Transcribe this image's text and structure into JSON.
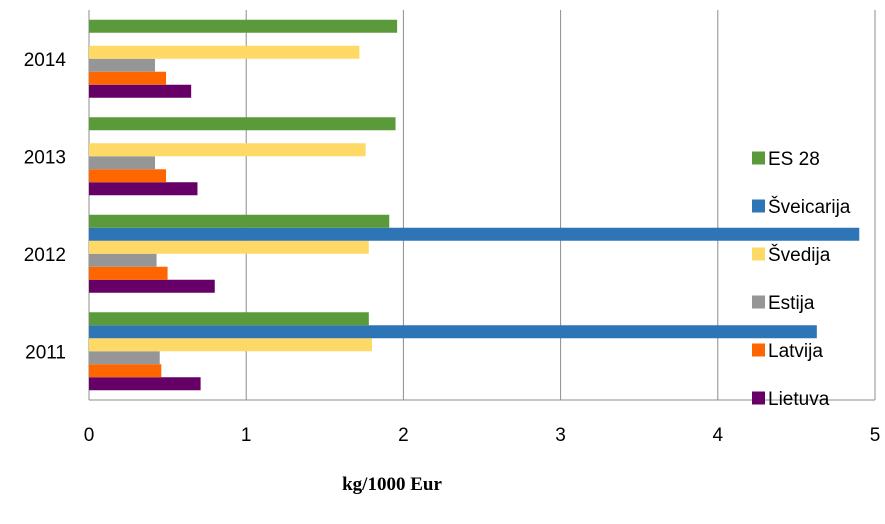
{
  "chart_data": {
    "type": "bar",
    "orientation": "horizontal",
    "categories": [
      "2011",
      "2012",
      "2013",
      "2014"
    ],
    "series": [
      {
        "name": "Lietuva",
        "color": "#660066",
        "values": [
          0.71,
          0.8,
          0.69,
          0.65
        ]
      },
      {
        "name": "Latvija",
        "color": "#ff6600",
        "values": [
          0.46,
          0.5,
          0.49,
          0.49
        ]
      },
      {
        "name": "Estija",
        "color": "#969696",
        "values": [
          0.45,
          0.43,
          0.42,
          0.42
        ]
      },
      {
        "name": "Švedija",
        "color": "#ffd966",
        "values": [
          1.8,
          1.78,
          1.76,
          1.72
        ]
      },
      {
        "name": "Šveicarija",
        "color": "#2e75b6",
        "values": [
          4.63,
          4.9,
          null,
          null
        ]
      },
      {
        "name": "ES 28",
        "color": "#5b9a3a",
        "values": [
          1.78,
          1.91,
          1.95,
          1.96
        ]
      }
    ],
    "xlim": [
      0,
      5
    ],
    "xticks": [
      "0",
      "1",
      "2",
      "3",
      "4",
      "5"
    ],
    "xlabel": "kg/1000 Eur",
    "grid": "vertical",
    "legend_position": "right"
  }
}
